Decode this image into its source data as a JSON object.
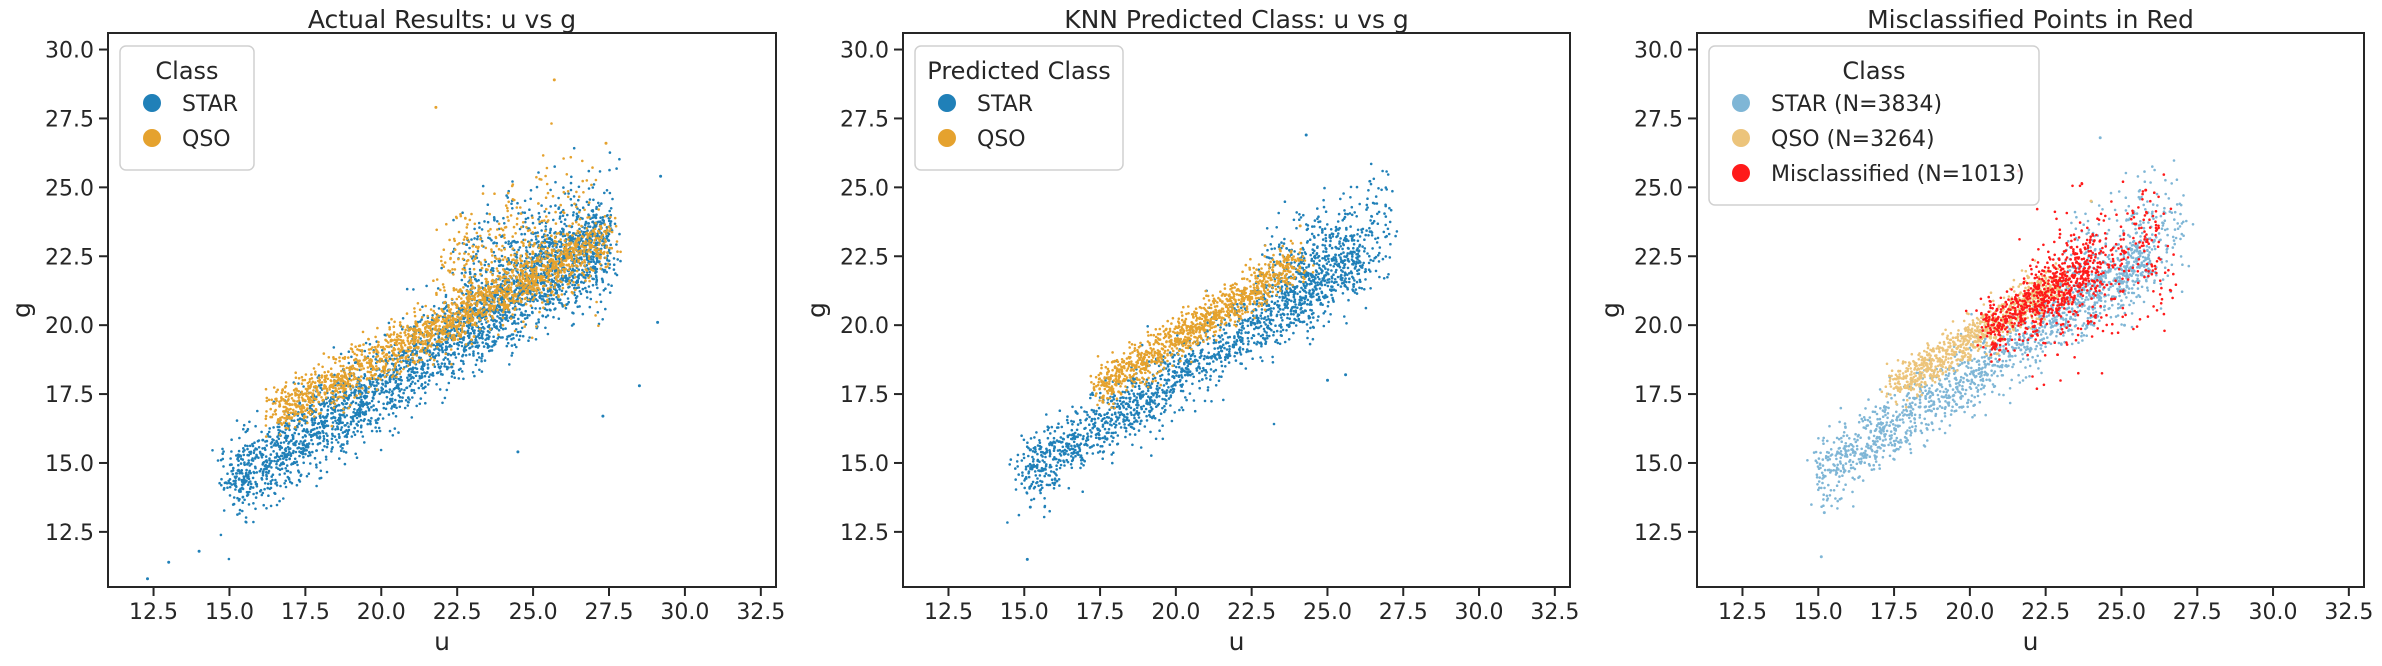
{
  "chart_data": [
    {
      "type": "scatter",
      "title": "Actual Results: u vs g",
      "xlabel": "u",
      "ylabel": "g",
      "xlim": [
        11.0,
        33.0
      ],
      "ylim": [
        10.5,
        30.6
      ],
      "xticks": [
        "12.5",
        "15.0",
        "17.5",
        "20.0",
        "22.5",
        "25.0",
        "27.5",
        "30.0",
        "32.5"
      ],
      "yticks": [
        "12.5",
        "15.0",
        "17.5",
        "20.0",
        "22.5",
        "25.0",
        "27.5",
        "30.0"
      ],
      "grid": false,
      "legend_title": "Class",
      "legend_placement": "upper-left",
      "series": [
        {
          "name": "STAR",
          "color": "#2080b8",
          "clusters": [
            {
              "x_range": [
                15.0,
                27.5
              ],
              "y_at_x_start": 14.2,
              "y_at_x_end": 23.2,
              "spread": 0.75,
              "count": 2600
            },
            {
              "x_range": [
                22.5,
                27.5
              ],
              "y_at_x_start": 21.0,
              "y_at_x_end": 23.5,
              "spread": 1.2,
              "count": 700
            }
          ],
          "outliers": [
            [
              12.3,
              10.8
            ],
            [
              13.0,
              11.4
            ],
            [
              14.0,
              11.8
            ],
            [
              29.2,
              25.4
            ],
            [
              29.1,
              20.1
            ],
            [
              27.3,
              16.7
            ],
            [
              24.5,
              15.4
            ],
            [
              28.5,
              17.8
            ]
          ]
        },
        {
          "name": "QSO",
          "color": "#e5a22e",
          "clusters": [
            {
              "x_range": [
                16.5,
                27.5
              ],
              "y_at_x_start": 16.8,
              "y_at_x_end": 23.2,
              "spread": 0.45,
              "count": 1700
            },
            {
              "x_range": [
                22.0,
                27.0
              ],
              "y_at_x_start": 21.5,
              "y_at_x_end": 23.5,
              "spread": 1.4,
              "count": 400
            }
          ],
          "outliers": [
            [
              21.8,
              27.9
            ],
            [
              25.7,
              28.9
            ],
            [
              27.4,
              26.6
            ]
          ]
        }
      ]
    },
    {
      "type": "scatter",
      "title": "KNN Predicted Class: u vs g",
      "xlabel": "u",
      "ylabel": "g",
      "xlim": [
        11.0,
        33.0
      ],
      "ylim": [
        10.5,
        30.6
      ],
      "xticks": [
        "12.5",
        "15.0",
        "17.5",
        "20.0",
        "22.5",
        "25.0",
        "27.5",
        "30.0",
        "32.5"
      ],
      "yticks": [
        "12.5",
        "15.0",
        "17.5",
        "20.0",
        "22.5",
        "25.0",
        "27.5",
        "30.0"
      ],
      "grid": false,
      "legend_title": "Predicted Class",
      "legend_placement": "upper-left",
      "series": [
        {
          "name": "STAR",
          "color": "#2080b8",
          "clusters": [
            {
              "x_range": [
                15.0,
                26.0
              ],
              "y_at_x_start": 14.5,
              "y_at_x_end": 22.5,
              "spread": 0.6,
              "count": 1600
            },
            {
              "x_range": [
                23.0,
                27.0
              ],
              "y_at_x_start": 21.5,
              "y_at_x_end": 23.5,
              "spread": 1.1,
              "count": 450
            }
          ],
          "outliers": [
            [
              15.2,
              13.4
            ],
            [
              15.1,
              11.5
            ],
            [
              24.3,
              26.9
            ],
            [
              25.6,
              18.2
            ],
            [
              25.0,
              18.0
            ]
          ]
        },
        {
          "name": "QSO",
          "color": "#e5a22e",
          "clusters": [
            {
              "x_range": [
                17.5,
                24.0
              ],
              "y_at_x_start": 17.7,
              "y_at_x_end": 22.3,
              "spread": 0.35,
              "count": 1100
            }
          ],
          "outliers": [
            [
              17.6,
              17.2
            ],
            [
              24.1,
              23.6
            ]
          ]
        }
      ]
    },
    {
      "type": "scatter",
      "title": "Misclassified Points in Red",
      "xlabel": "u",
      "ylabel": "g",
      "xlim": [
        11.0,
        33.0
      ],
      "ylim": [
        10.5,
        30.6
      ],
      "xticks": [
        "12.5",
        "15.0",
        "17.5",
        "20.0",
        "22.5",
        "25.0",
        "27.5",
        "30.0",
        "32.5"
      ],
      "yticks": [
        "12.5",
        "15.0",
        "17.5",
        "20.0",
        "22.5",
        "25.0",
        "27.5",
        "30.0"
      ],
      "grid": false,
      "legend_title": "Class",
      "legend_placement": "upper-left",
      "series": [
        {
          "name": "STAR (N=3834)",
          "color": "#7fb6d6",
          "clusters": [
            {
              "x_range": [
                15.0,
                26.0
              ],
              "y_at_x_start": 14.5,
              "y_at_x_end": 22.5,
              "spread": 0.6,
              "count": 1400
            },
            {
              "x_range": [
                23.0,
                27.0
              ],
              "y_at_x_start": 21.5,
              "y_at_x_end": 23.5,
              "spread": 1.1,
              "count": 350
            }
          ],
          "outliers": [
            [
              15.2,
              13.2
            ],
            [
              15.1,
              11.6
            ],
            [
              24.3,
              26.8
            ],
            [
              25.1,
              20.0
            ]
          ]
        },
        {
          "name": "QSO (N=3264)",
          "color": "#ecc47b",
          "clusters": [
            {
              "x_range": [
                17.5,
                23.0
              ],
              "y_at_x_start": 17.7,
              "y_at_x_end": 21.6,
              "spread": 0.35,
              "count": 900
            }
          ],
          "outliers": [
            [
              24.0,
              24.5
            ]
          ]
        },
        {
          "name": "Misclassified (N=1013)",
          "color": "#ff1a1a",
          "clusters": [
            {
              "x_range": [
                20.5,
                24.0
              ],
              "y_at_x_start": 19.7,
              "y_at_x_end": 22.2,
              "spread": 0.5,
              "count": 550
            },
            {
              "x_range": [
                22.0,
                26.5
              ],
              "y_at_x_start": 21.0,
              "y_at_x_end": 23.0,
              "spread": 1.3,
              "count": 400
            }
          ],
          "outliers": [
            [
              21.6,
              25.6
            ],
            [
              25.8,
              24.9
            ]
          ]
        }
      ]
    }
  ]
}
